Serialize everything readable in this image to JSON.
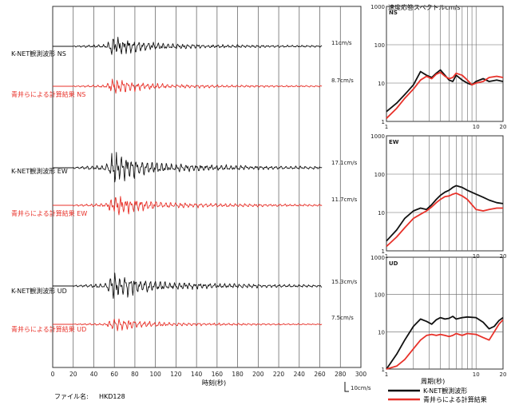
{
  "chart_data": [
    {
      "type": "line",
      "xlabel": "時刻(秒)",
      "xlim": [
        0,
        300
      ],
      "x_ticks": [
        "0",
        "20",
        "40",
        "60",
        "80",
        "100",
        "120",
        "140",
        "160",
        "180",
        "200",
        "220",
        "240",
        "260",
        "280",
        "300"
      ],
      "scale_bar": "10cm/s",
      "file_label": "ファイル名:",
      "file_name": "HKD128",
      "series": [
        {
          "name": "K-NET観測波形 NS",
          "component": "NS",
          "color": "#111111",
          "peak_label": "11cm/s",
          "peak": 11
        },
        {
          "name": "青井らによる計算結果 NS",
          "component": "NS",
          "color": "#e8322a",
          "peak_label": "8.7cm/s",
          "peak": 8.7
        },
        {
          "name": "K-NET観測波形 EW",
          "component": "EW",
          "color": "#111111",
          "peak_label": "17.1cm/s",
          "peak": 17.1
        },
        {
          "name": "青井らによる計算結果 EW",
          "component": "EW",
          "color": "#e8322a",
          "peak_label": "11.7cm/s",
          "peak": 11.7
        },
        {
          "name": "K-NET観測波形 UD",
          "component": "UD",
          "color": "#111111",
          "peak_label": "15.3cm/s",
          "peak": 15.3
        },
        {
          "name": "青井らによる計算結果 UD",
          "component": "UD",
          "color": "#e8322a",
          "peak_label": "7.5cm/s",
          "peak": 7.5
        }
      ]
    },
    {
      "type": "line",
      "title": "速度応答スペクトル",
      "unit": "cm/s",
      "xlabel": "周期(秒)",
      "x_scale": "log",
      "y_scale": "log",
      "xlim": [
        1,
        20
      ],
      "ylim": [
        1,
        1000
      ],
      "x_ticks": [
        "1",
        "10",
        "20"
      ],
      "y_ticks": [
        "1",
        "10",
        "100",
        "1000"
      ],
      "legend": [
        "K-NET観測波形",
        "青井らによる計算結果"
      ],
      "panels": [
        {
          "component": "NS",
          "series": [
            {
              "name": "K-NET観測波形",
              "color": "#111111",
              "x": [
                1,
                1.3,
                1.6,
                2,
                2.4,
                2.8,
                3.2,
                3.6,
                4,
                4.5,
                5,
                5.5,
                6,
                7,
                8,
                9,
                10,
                12,
                14,
                17,
                20
              ],
              "y": [
                1.8,
                3,
                5,
                9,
                20,
                16,
                14,
                18,
                22,
                16,
                12,
                11,
                16,
                12,
                10,
                9,
                11,
                13,
                11,
                12,
                11
              ]
            },
            {
              "name": "青井らによる計算結果",
              "color": "#e8322a",
              "x": [
                1,
                1.3,
                1.6,
                2,
                2.4,
                2.8,
                3.2,
                3.6,
                4,
                4.5,
                5,
                5.5,
                6,
                7,
                8,
                9,
                10,
                12,
                14,
                17,
                20
              ],
              "y": [
                1.2,
                2.2,
                4,
                7,
                12,
                15,
                13,
                17,
                19,
                15,
                13,
                14,
                18,
                16,
                12,
                9,
                10,
                11,
                14,
                15,
                14
              ]
            }
          ]
        },
        {
          "component": "EW",
          "series": [
            {
              "name": "K-NET観測波形",
              "color": "#111111",
              "x": [
                1,
                1.3,
                1.6,
                2,
                2.4,
                2.8,
                3.2,
                3.6,
                4,
                4.5,
                5,
                5.5,
                6,
                7,
                8,
                10,
                12,
                14,
                17,
                20
              ],
              "y": [
                1.8,
                3.5,
                7,
                11,
                13,
                12,
                16,
                22,
                28,
                34,
                38,
                45,
                50,
                45,
                38,
                30,
                25,
                21,
                18,
                17
              ]
            },
            {
              "name": "青井らによる計算結果",
              "color": "#e8322a",
              "x": [
                1,
                1.3,
                1.6,
                2,
                2.4,
                2.8,
                3.2,
                3.6,
                4,
                4.5,
                5,
                5.5,
                6,
                7,
                8,
                10,
                12,
                14,
                17,
                20
              ],
              "y": [
                1.3,
                2.3,
                4,
                7,
                9,
                11,
                14,
                18,
                22,
                26,
                27,
                30,
                32,
                27,
                22,
                12,
                11,
                12,
                13,
                13
              ]
            }
          ]
        },
        {
          "component": "UD",
          "series": [
            {
              "name": "K-NET観測波形",
              "color": "#111111",
              "x": [
                1,
                1.3,
                1.6,
                2,
                2.4,
                2.8,
                3.2,
                3.6,
                4,
                4.5,
                5,
                5.5,
                6,
                7,
                8,
                10,
                12,
                14,
                16,
                18,
                20
              ],
              "y": [
                1,
                2.5,
                6,
                14,
                22,
                19,
                16,
                21,
                24,
                22,
                23,
                26,
                22,
                24,
                25,
                24,
                18,
                12,
                14,
                20,
                24
              ]
            },
            {
              "name": "青井らによる計算結果",
              "color": "#e8322a",
              "x": [
                1,
                1.3,
                1.6,
                2,
                2.4,
                2.8,
                3.2,
                3.6,
                4,
                4.5,
                5,
                5.5,
                6,
                7,
                8,
                10,
                12,
                14,
                16,
                18,
                20
              ],
              "y": [
                1,
                1.2,
                1.8,
                3.5,
                6,
                8,
                8.5,
                8,
                8.5,
                8,
                7.5,
                8,
                9,
                8,
                9,
                8.5,
                7,
                6,
                10,
                16,
                21
              ]
            }
          ]
        }
      ]
    }
  ]
}
